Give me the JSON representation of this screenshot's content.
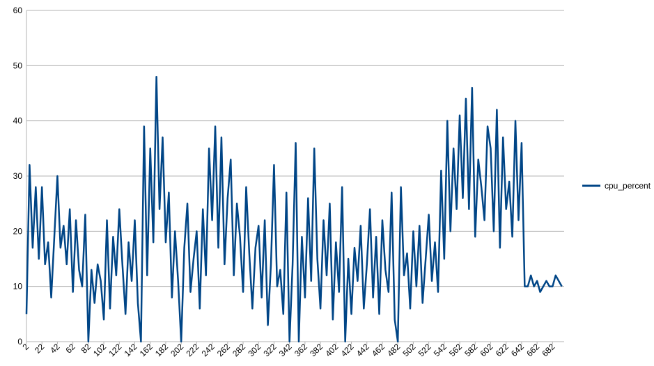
{
  "chart_data": {
    "type": "line",
    "x": [
      2,
      6,
      10,
      14,
      18,
      22,
      26,
      30,
      34,
      38,
      42,
      46,
      50,
      54,
      58,
      62,
      66,
      70,
      74,
      78,
      82,
      86,
      90,
      94,
      98,
      102,
      106,
      110,
      114,
      118,
      122,
      126,
      130,
      134,
      138,
      142,
      146,
      150,
      154,
      158,
      162,
      166,
      170,
      174,
      178,
      182,
      186,
      190,
      194,
      198,
      202,
      206,
      210,
      214,
      218,
      222,
      226,
      230,
      234,
      238,
      242,
      246,
      250,
      254,
      258,
      262,
      266,
      270,
      274,
      278,
      282,
      286,
      290,
      294,
      298,
      302,
      306,
      310,
      314,
      318,
      322,
      326,
      330,
      334,
      338,
      342,
      346,
      350,
      354,
      358,
      362,
      366,
      370,
      374,
      378,
      382,
      386,
      390,
      394,
      398,
      402,
      406,
      410,
      414,
      418,
      422,
      426,
      430,
      434,
      438,
      442,
      446,
      450,
      454,
      458,
      462,
      466,
      470,
      474,
      478,
      482,
      486,
      490,
      494,
      498,
      502,
      506,
      510,
      514,
      518,
      522,
      526,
      530,
      534,
      538,
      542,
      546,
      550,
      554,
      558,
      562,
      566,
      570,
      574,
      578,
      582,
      586,
      590,
      594,
      598,
      602,
      606,
      610,
      614,
      618,
      622,
      626,
      630,
      634,
      638,
      642,
      646,
      650,
      654,
      658,
      662,
      666,
      670,
      674,
      678,
      682,
      686,
      690,
      694
    ],
    "series": [
      {
        "name": "cpu_percent",
        "color": "#004586",
        "values": [
          5,
          32,
          17,
          28,
          15,
          28,
          14,
          18,
          8,
          19,
          30,
          17,
          21,
          14,
          24,
          9,
          22,
          13,
          10,
          23,
          0,
          13,
          7,
          14,
          11,
          4,
          22,
          6,
          19,
          12,
          24,
          14,
          5,
          18,
          11,
          22,
          7,
          0,
          39,
          12,
          35,
          18,
          48,
          24,
          37,
          18,
          27,
          8,
          20,
          11,
          0,
          17,
          25,
          9,
          15,
          20,
          6,
          24,
          12,
          35,
          22,
          39,
          17,
          37,
          14,
          26,
          33,
          12,
          25,
          19,
          9,
          28,
          16,
          6,
          17,
          21,
          8,
          22,
          3,
          14,
          32,
          10,
          13,
          5,
          27,
          0,
          14,
          36,
          0,
          19,
          8,
          26,
          11,
          35,
          15,
          6,
          22,
          12,
          25,
          4,
          18,
          9,
          28,
          0,
          15,
          5,
          17,
          11,
          21,
          6,
          14,
          24,
          8,
          19,
          5,
          22,
          13,
          9,
          27,
          4,
          0,
          28,
          12,
          16,
          6,
          20,
          10,
          21,
          7,
          15,
          23,
          11,
          18,
          9,
          31,
          15,
          40,
          20,
          35,
          24,
          41,
          26,
          44,
          24,
          46,
          19,
          33,
          28,
          22,
          39,
          35,
          20,
          42,
          17,
          37,
          24,
          29,
          19,
          40,
          22,
          36,
          10,
          10,
          12,
          10,
          11,
          9,
          10,
          11,
          10,
          10,
          12,
          11,
          10
        ]
      }
    ],
    "xlim": [
      2,
      697
    ],
    "xticks": [
      2,
      22,
      42,
      62,
      82,
      102,
      122,
      142,
      162,
      182,
      202,
      222,
      242,
      262,
      282,
      302,
      322,
      342,
      362,
      382,
      402,
      422,
      442,
      462,
      482,
      502,
      522,
      542,
      562,
      582,
      602,
      622,
      642,
      662,
      682
    ],
    "ylim": [
      0,
      60
    ],
    "yticks": [
      0,
      10,
      20,
      30,
      40,
      50,
      60
    ],
    "grid": true,
    "legend": "right"
  }
}
